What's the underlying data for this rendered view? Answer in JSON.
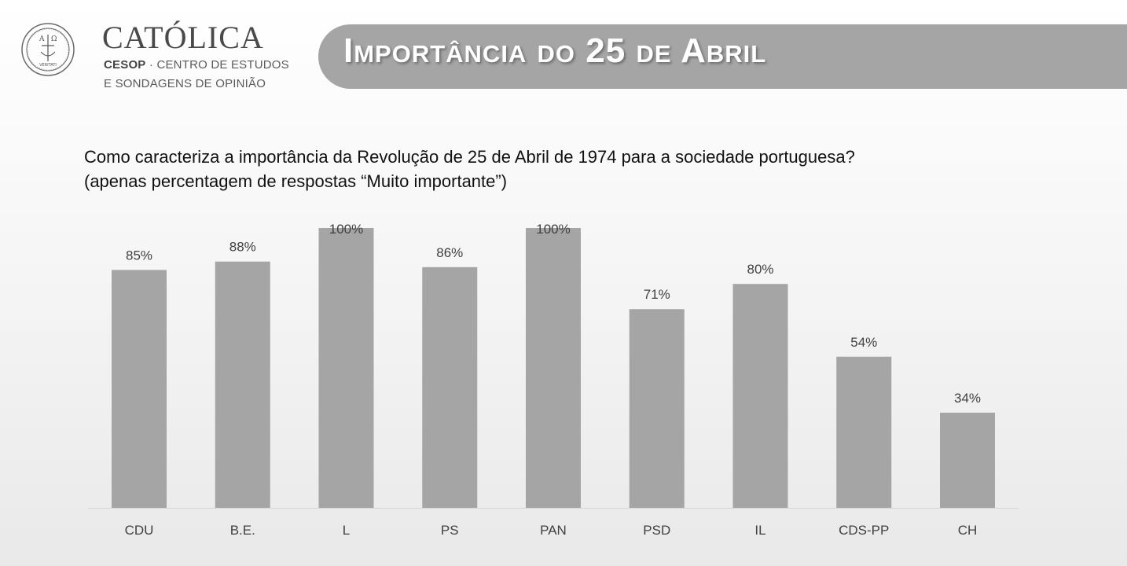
{
  "logo": {
    "name": "CATÓLICA",
    "seal_text": "VERITATI",
    "sub_line1_bold": "CESOP",
    "sub_line1_rest": " · CENTRO DE ESTUDOS",
    "sub_line2": "E SONDAGENS DE OPINIÃO"
  },
  "header": {
    "title": "Importância do 25 de Abril"
  },
  "question": {
    "line1": "Como caracteriza a importância da Revolução de 25 de Abril de 1974 para a sociedade portuguesa?",
    "line2": "(apenas percentagem de respostas “Muito importante”)"
  },
  "colors": {
    "bar": "#a5a5a5",
    "banner": "#a5a5a5",
    "text": "#404040"
  },
  "chart_data": {
    "type": "bar",
    "categories": [
      "CDU",
      "B.E.",
      "L",
      "PS",
      "PAN",
      "PSD",
      "IL",
      "CDS-PP",
      "CH"
    ],
    "values": [
      85,
      88,
      100,
      86,
      100,
      71,
      80,
      54,
      34
    ],
    "value_labels": [
      "85%",
      "88%",
      "100%",
      "86%",
      "100%",
      "71%",
      "80%",
      "54%",
      "34%"
    ],
    "unit": "%",
    "ylim": [
      0,
      100
    ],
    "grid": false,
    "legend": "none"
  }
}
